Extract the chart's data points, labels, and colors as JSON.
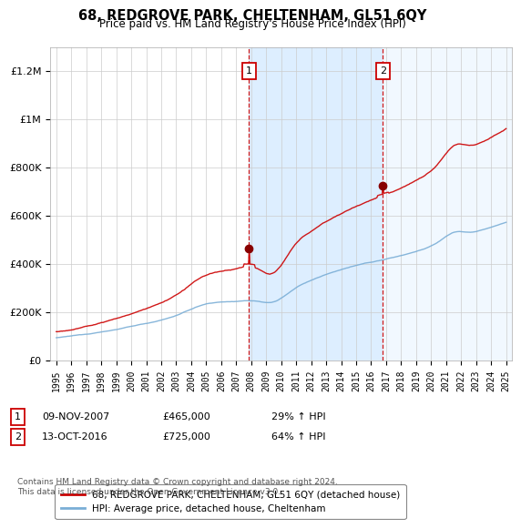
{
  "title": "68, REDGROVE PARK, CHELTENHAM, GL51 6QY",
  "subtitle": "Price paid vs. HM Land Registry's House Price Index (HPI)",
  "legend_line1": "68, REDGROVE PARK, CHELTENHAM, GL51 6QY (detached house)",
  "legend_line2": "HPI: Average price, detached house, Cheltenham",
  "footnote": "Contains HM Land Registry data © Crown copyright and database right 2024.\nThis data is licensed under the Open Government Licence v3.0.",
  "sale1_date": "09-NOV-2007",
  "sale1_price": 465000,
  "sale1_hpi": "29% ↑ HPI",
  "sale2_date": "13-OCT-2016",
  "sale2_price": 725000,
  "sale2_hpi": "64% ↑ HPI",
  "sale1_year": 2007.86,
  "sale2_year": 2016.79,
  "red_color": "#cc0000",
  "blue_color": "#7aaed6",
  "shade_color": "#ddeeff",
  "background_color": "#ffffff",
  "ylim": [
    0,
    1300000
  ],
  "yticks": [
    0,
    200000,
    400000,
    600000,
    800000,
    1000000,
    1200000
  ],
  "xlim_start": 1994.6,
  "xlim_end": 2025.4,
  "xticks": [
    1995,
    1996,
    1997,
    1998,
    1999,
    2000,
    2001,
    2002,
    2003,
    2004,
    2005,
    2006,
    2007,
    2008,
    2009,
    2010,
    2011,
    2012,
    2013,
    2014,
    2015,
    2016,
    2017,
    2018,
    2019,
    2020,
    2021,
    2022,
    2023,
    2024,
    2025
  ]
}
